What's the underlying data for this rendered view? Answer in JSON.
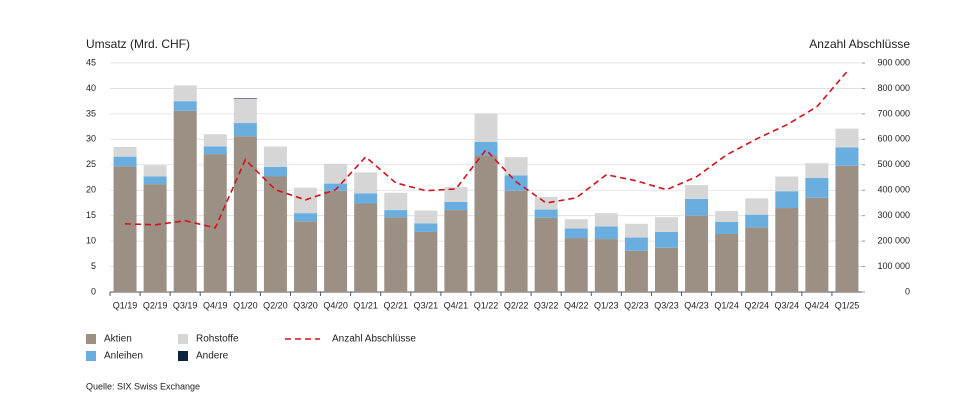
{
  "chart_data": {
    "type": "bar",
    "stacked": true,
    "y_label": "Umsatz (Mrd. CHF)",
    "y2_label": "Anzahl Abschlüsse",
    "source": "Quelle: SIX Swiss Exchange",
    "categories": [
      "Q1/19",
      "Q2/19",
      "Q3/19",
      "Q4/19",
      "Q1/20",
      "Q2/20",
      "Q3/20",
      "Q4/20",
      "Q1/21",
      "Q2/21",
      "Q3/21",
      "Q4/21",
      "Q1/22",
      "Q2/22",
      "Q3/22",
      "Q4/22",
      "Q1/23",
      "Q2/23",
      "Q3/23",
      "Q4/23",
      "Q1/24",
      "Q2/24",
      "Q3/24",
      "Q4/24",
      "Q1/25"
    ],
    "series": [
      {
        "name": "Aktien",
        "color": "#9b9083",
        "values": [
          24.7,
          21.2,
          35.6,
          27.1,
          30.6,
          22.7,
          13.9,
          19.9,
          17.4,
          14.7,
          11.8,
          16.1,
          26.9,
          19.9,
          14.6,
          10.6,
          10.4,
          8.1,
          8.7,
          15.0,
          11.4,
          12.7,
          16.5,
          18.5,
          24.8
        ]
      },
      {
        "name": "Anleihen",
        "color": "#6aaee0",
        "values": [
          1.9,
          1.5,
          1.9,
          1.5,
          2.6,
          1.9,
          1.6,
          1.4,
          2.0,
          1.4,
          1.7,
          1.6,
          2.6,
          3.0,
          1.6,
          1.9,
          2.5,
          2.6,
          3.1,
          3.3,
          2.4,
          2.5,
          3.3,
          3.9,
          3.6
        ]
      },
      {
        "name": "Rohstoffe",
        "color": "#d6d6d6",
        "values": [
          1.9,
          2.2,
          3.1,
          2.4,
          4.8,
          4.0,
          5.0,
          3.9,
          4.1,
          3.4,
          2.5,
          2.9,
          5.6,
          3.6,
          2.5,
          1.8,
          2.6,
          2.7,
          2.9,
          2.7,
          2.1,
          3.2,
          2.9,
          2.9,
          3.7
        ]
      },
      {
        "name": "Andere",
        "color": "#0d2240",
        "values": [
          0,
          0,
          0,
          0,
          0.1,
          0,
          0,
          0,
          0,
          0,
          0,
          0,
          0,
          0,
          0,
          0,
          0,
          0,
          0,
          0,
          0,
          0,
          0,
          0,
          0
        ]
      },
      {
        "name": "Anzahl Abschlüsse",
        "type": "line",
        "axis": "y2",
        "color": "#d2121b",
        "dashed": true,
        "values": [
          268000,
          264000,
          280000,
          252000,
          520000,
          402000,
          362000,
          402000,
          531000,
          429000,
          398000,
          405000,
          559000,
          433000,
          350000,
          370000,
          461000,
          437000,
          402000,
          453000,
          539000,
          602000,
          657000,
          728000,
          866000
        ]
      }
    ],
    "ylim": [
      0,
      45
    ],
    "yticks": [
      0,
      5,
      10,
      15,
      20,
      25,
      30,
      35,
      40,
      45
    ],
    "y2lim": [
      0,
      900000
    ],
    "y2ticks": [
      0,
      {
        "value": 100000,
        "label": "100 000"
      },
      {
        "value": 200000,
        "label": "200 000"
      },
      {
        "value": 300000,
        "label": "300 000"
      },
      {
        "value": 400000,
        "label": "400 000"
      },
      {
        "value": 500000,
        "label": "500 000"
      },
      {
        "value": 600000,
        "label": "600 000"
      },
      {
        "value": 700000,
        "label": "700 000"
      },
      {
        "value": 800000,
        "label": "800 000"
      },
      {
        "value": 900000,
        "label": "900 000"
      }
    ],
    "grid": true
  }
}
